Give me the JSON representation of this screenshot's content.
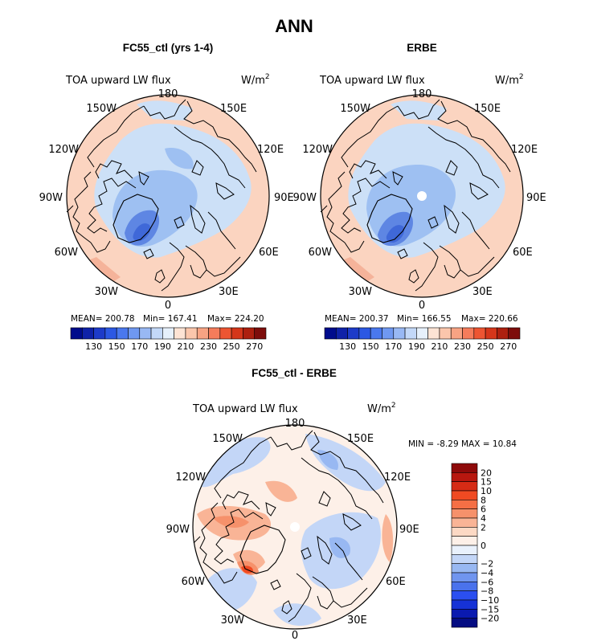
{
  "page_title": "ANN",
  "colors": {
    "land": "#fbd4c0",
    "land_warm": "#f5b39a",
    "ocean_cold": "#cce0f7",
    "ice": "#9ec0f2",
    "deep": "#5e86e3",
    "deepest": "#3f68d8",
    "coast": "#000000"
  },
  "chart_data": [
    {
      "type": "heatmap",
      "title": "FC55_ctl (yrs 1-4)",
      "variable": "TOA upward LW flux",
      "units": "W/m",
      "units_exp": "2",
      "stats": {
        "mean": "MEAN= 200.78",
        "min": "Min= 167.41",
        "max": "Max= 224.20"
      },
      "colorbar": {
        "orientation": "horizontal",
        "colors": [
          "#000c8c",
          "#0f22a8",
          "#1d3bc9",
          "#2c58e3",
          "#4a78ee",
          "#6f98f1",
          "#98b8f4",
          "#c3d8f8",
          "#e6f0fb",
          "#fde3d4",
          "#fbc6ac",
          "#f8a383",
          "#f57c5b",
          "#ed5532",
          "#d5361a",
          "#ad200f",
          "#7d0d0b"
        ],
        "labels": [
          "130",
          "150",
          "170",
          "190",
          "210",
          "230",
          "250",
          "270"
        ],
        "label_positions": [
          1,
          3,
          5,
          7,
          9,
          11,
          13,
          15
        ]
      },
      "longitudes": [
        "180",
        "150E",
        "120E",
        "90E",
        "60E",
        "30E",
        "0",
        "30W",
        "60W",
        "90W",
        "120W",
        "150W"
      ]
    },
    {
      "type": "heatmap",
      "title": "ERBE",
      "variable": "TOA upward LW flux",
      "units": "W/m",
      "units_exp": "2",
      "stats": {
        "mean": "MEAN= 200.37",
        "min": "Min= 166.55",
        "max": "Max= 220.66"
      },
      "colorbar": {
        "orientation": "horizontal",
        "colors": [
          "#000c8c",
          "#0f22a8",
          "#1d3bc9",
          "#2c58e3",
          "#4a78ee",
          "#6f98f1",
          "#98b8f4",
          "#c3d8f8",
          "#e6f0fb",
          "#fde3d4",
          "#fbc6ac",
          "#f8a383",
          "#f57c5b",
          "#ed5532",
          "#d5361a",
          "#ad200f",
          "#7d0d0b"
        ],
        "labels": [
          "130",
          "150",
          "170",
          "190",
          "210",
          "230",
          "250",
          "270"
        ],
        "label_positions": [
          1,
          3,
          5,
          7,
          9,
          11,
          13,
          15
        ]
      },
      "longitudes": [
        "180",
        "150E",
        "120E",
        "90E",
        "60E",
        "30E",
        "0",
        "30W",
        "60W",
        "90W",
        "120W",
        "150W"
      ]
    },
    {
      "type": "heatmap",
      "title": "FC55_ctl - ERBE",
      "variable": "TOA upward LW flux",
      "units": "W/m",
      "units_exp": "2",
      "stats": {
        "minmax": "MIN =   -8.29  MAX =   10.84"
      },
      "colorbar": {
        "orientation": "vertical",
        "colors_top_to_bottom": [
          "#8e0a0a",
          "#b8170f",
          "#d62b15",
          "#f04a22",
          "#f56f45",
          "#f6916b",
          "#f9b496",
          "#fcd9c4",
          "#fdf0e8",
          "#e9f1fc",
          "#c3d6f7",
          "#98b8f2",
          "#7095ef",
          "#4a72ec",
          "#2b4ff0",
          "#1632d6",
          "#0a1ab0",
          "#050d82"
        ],
        "labels_top_to_bottom": [
          "20",
          "15",
          "10",
          "8",
          "6",
          "4",
          "2",
          "0",
          "−2",
          "−4",
          "−6",
          "−8",
          "−10",
          "−15",
          "−20"
        ],
        "label_boundaries": [
          1,
          2,
          3,
          4,
          5,
          6,
          7,
          9,
          11,
          12,
          13,
          14,
          15,
          16,
          17
        ]
      },
      "longitudes": [
        "180",
        "150E",
        "120E",
        "90E",
        "60E",
        "30E",
        "0",
        "30W",
        "60W",
        "90W",
        "120W",
        "150W"
      ]
    }
  ]
}
